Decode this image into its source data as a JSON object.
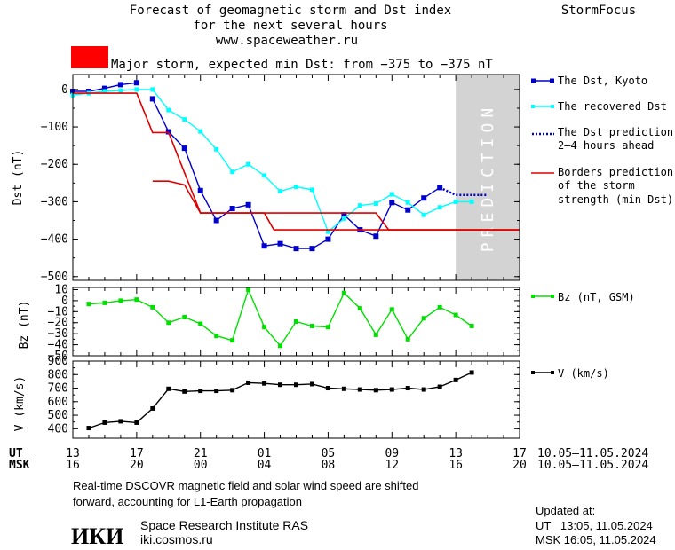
{
  "header": {
    "title_lines": [
      "Forecast of geomagnetic storm and Dst index",
      "for the next several hours",
      "www.spaceweather.ru"
    ],
    "brand": "StormFocus",
    "storm_label": "Major storm, expected min Dst: from −375 to −375 nT",
    "storm_color": "#ff0000"
  },
  "prediction_label": "PREDICTION",
  "colors": {
    "dst": "#0000cc",
    "recovered": "#00ffff",
    "prediction": "#0000cc",
    "borders": "#dd0000",
    "bz": "#00e000",
    "v": "#000000",
    "pred_band": "#d3d3d3"
  },
  "legend": {
    "dst": "The Dst, Kyoto",
    "recovered": "The recovered Dst",
    "prediction": [
      "The Dst prediction",
      "2–4 hours ahead"
    ],
    "borders": [
      "Borders prediction",
      "of the storm",
      "strength (min Dst)"
    ],
    "bz": "Bz (nT, GSM)",
    "v": "V (km/s)"
  },
  "time_axis": {
    "ut_label": "UT",
    "msk_label": "MSK",
    "ticks": [
      {
        "t": 0,
        "ut": "13",
        "msk": "16"
      },
      {
        "t": 4,
        "ut": "17",
        "msk": "20"
      },
      {
        "t": 8,
        "ut": "21",
        "msk": "00"
      },
      {
        "t": 12,
        "ut": "01",
        "msk": "04"
      },
      {
        "t": 16,
        "ut": "05",
        "msk": "08"
      },
      {
        "t": 20,
        "ut": "09",
        "msk": "12"
      },
      {
        "t": 24,
        "ut": "13",
        "msk": "16"
      },
      {
        "t": 28,
        "ut": "17",
        "msk": "20"
      }
    ],
    "date_range_ut": "10.05–11.05.2024",
    "date_range_msk": "10.05–11.05.2024"
  },
  "chart_data": [
    {
      "type": "line",
      "panel": "dst",
      "ylabel": "Dst (nT)",
      "xlim": [
        0,
        28
      ],
      "ylim": [
        -510,
        40
      ],
      "yticks": [
        0,
        -100,
        -200,
        -300,
        -400,
        -500
      ],
      "ytick_labels": [
        "0",
        "−100",
        "−200",
        "−300",
        "−400",
        "−500"
      ],
      "prediction_region": [
        24,
        28
      ],
      "series": [
        {
          "name": "The Dst, Kyoto",
          "key": "dst",
          "points": [
            [
              0,
              -5
            ],
            [
              1,
              -5
            ],
            [
              2,
              3
            ],
            [
              3,
              13
            ],
            [
              4,
              18
            ],
            [
              5,
              -25
            ],
            [
              6,
              -113
            ],
            [
              7,
              -157
            ],
            [
              8,
              -270
            ],
            [
              9,
              -350
            ],
            [
              10,
              -318
            ],
            [
              11,
              -308
            ],
            [
              12,
              -418
            ],
            [
              13,
              -412
            ],
            [
              14,
              -425
            ],
            [
              15,
              -425
            ],
            [
              16,
              -400
            ],
            [
              17,
              -335
            ],
            [
              18,
              -375
            ],
            [
              19,
              -392
            ],
            [
              20,
              -302
            ],
            [
              21,
              -322
            ],
            [
              22,
              -290
            ],
            [
              23,
              -262
            ]
          ]
        },
        {
          "name": "The recovered Dst",
          "key": "recovered",
          "points": [
            [
              0,
              -15
            ],
            [
              1,
              -10
            ],
            [
              2,
              -5
            ],
            [
              3,
              -3
            ],
            [
              4,
              0
            ],
            [
              5,
              0
            ],
            [
              6,
              -55
            ],
            [
              7,
              -80
            ],
            [
              8,
              -112
            ],
            [
              9,
              -160
            ],
            [
              10,
              -220
            ],
            [
              11,
              -200
            ],
            [
              12,
              -230
            ],
            [
              13,
              -272
            ],
            [
              14,
              -260
            ],
            [
              15,
              -268
            ],
            [
              16,
              -380
            ],
            [
              17,
              -345
            ],
            [
              18,
              -310
            ],
            [
              19,
              -305
            ],
            [
              20,
              -280
            ],
            [
              21,
              -302
            ],
            [
              22,
              -335
            ],
            [
              23,
              -315
            ],
            [
              24,
              -300
            ],
            [
              25,
              -300
            ]
          ]
        },
        {
          "name": "The Dst prediction 2–4 hours ahead",
          "key": "prediction",
          "points": [
            [
              23,
              -262
            ],
            [
              24,
              -282
            ],
            [
              25,
              -282
            ],
            [
              26,
              -282
            ]
          ]
        },
        {
          "name": "Borders prediction of the storm strength (min Dst)",
          "key": "borders_1",
          "points": [
            [
              0,
              -10
            ],
            [
              4,
              -10
            ],
            [
              5,
              -115
            ],
            [
              6,
              -115
            ],
            [
              8,
              -330
            ],
            [
              19,
              -330
            ],
            [
              19.8,
              -375
            ],
            [
              28,
              -375
            ]
          ]
        },
        {
          "name": "",
          "key": "borders_2",
          "points": [
            [
              5,
              -245
            ],
            [
              6,
              -245
            ],
            [
              7,
              -255
            ],
            [
              8,
              -330
            ],
            [
              12,
              -330
            ],
            [
              12.6,
              -375
            ],
            [
              28,
              -375
            ]
          ]
        }
      ]
    },
    {
      "type": "line",
      "panel": "bz",
      "ylabel": "Bz (nT)",
      "xlim": [
        0,
        28
      ],
      "ylim": [
        -50,
        12
      ],
      "yticks": [
        10,
        0,
        -10,
        -20,
        -30,
        -40,
        -50
      ],
      "ytick_labels": [
        "10",
        "0",
        "−10",
        "−20",
        "−30",
        "−40",
        "−50"
      ],
      "series": [
        {
          "name": "Bz (nT, GSM)",
          "key": "bz",
          "points": [
            [
              1,
              -3
            ],
            [
              2,
              -2
            ],
            [
              3,
              0
            ],
            [
              4,
              1
            ],
            [
              5,
              -6
            ],
            [
              6,
              -20
            ],
            [
              7,
              -15
            ],
            [
              8,
              -21
            ],
            [
              9,
              -32
            ],
            [
              10,
              -36
            ],
            [
              11,
              10
            ],
            [
              12,
              -24
            ],
            [
              13,
              -41
            ],
            [
              14,
              -19
            ],
            [
              15,
              -23
            ],
            [
              16,
              -24
            ],
            [
              17,
              7
            ],
            [
              18,
              -7
            ],
            [
              19,
              -31
            ],
            [
              20,
              -8
            ],
            [
              21,
              -35
            ],
            [
              22,
              -16
            ],
            [
              23,
              -6
            ],
            [
              24,
              -13
            ],
            [
              25,
              -23
            ]
          ]
        }
      ]
    },
    {
      "type": "line",
      "panel": "v",
      "ylabel": "V (km/s)",
      "xlim": [
        0,
        28
      ],
      "ylim": [
        330,
        900
      ],
      "yticks": [
        900,
        800,
        700,
        600,
        500,
        400
      ],
      "ytick_labels": [
        "900",
        "800",
        "700",
        "600",
        "500",
        "400"
      ],
      "series": [
        {
          "name": "V (km/s)",
          "key": "v",
          "points": [
            [
              1,
              405
            ],
            [
              2,
              445
            ],
            [
              3,
              455
            ],
            [
              4,
              445
            ],
            [
              5,
              550
            ],
            [
              6,
              695
            ],
            [
              7,
              675
            ],
            [
              8,
              680
            ],
            [
              9,
              680
            ],
            [
              10,
              685
            ],
            [
              11,
              740
            ],
            [
              12,
              735
            ],
            [
              13,
              725
            ],
            [
              14,
              725
            ],
            [
              15,
              730
            ],
            [
              16,
              700
            ],
            [
              17,
              695
            ],
            [
              18,
              690
            ],
            [
              19,
              685
            ],
            [
              20,
              690
            ],
            [
              21,
              700
            ],
            [
              22,
              690
            ],
            [
              23,
              710
            ],
            [
              24,
              760
            ],
            [
              25,
              815
            ]
          ]
        }
      ]
    }
  ],
  "footer": {
    "note_lines": [
      "Real-time DSCOVR magnetic field and solar wind speed are shifted",
      "forward, accounting for L1-Earth propagation"
    ],
    "logo_text": "ИКИ",
    "institute": "Space Research Institute RAS",
    "site": "iki.cosmos.ru",
    "updated_label": "Updated at:",
    "updated_ut": "UT   13:05, 11.05.2024",
    "updated_msk": "MSK 16:05, 11.05.2024"
  }
}
